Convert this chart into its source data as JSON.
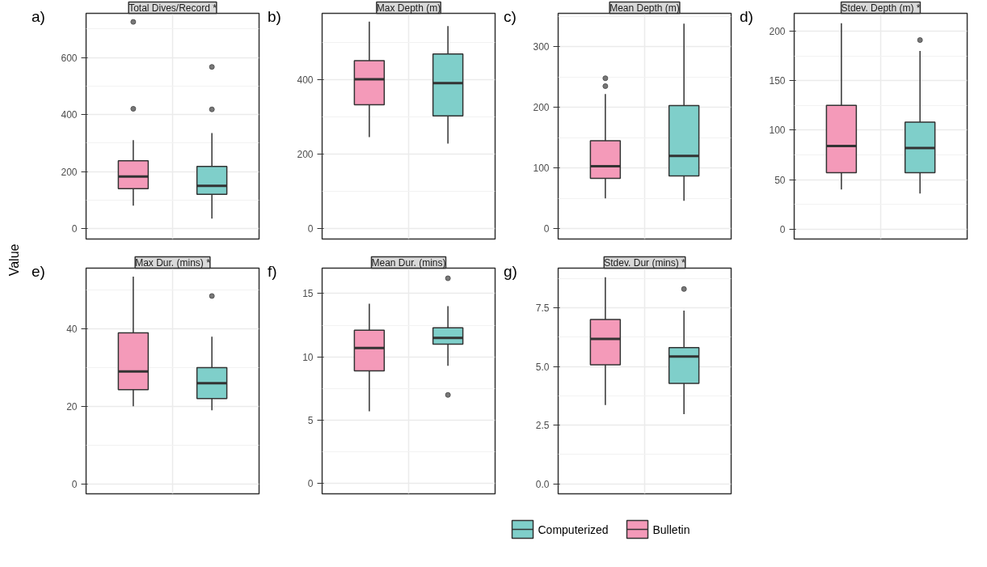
{
  "chart_data": [
    {
      "type": "box",
      "title": "Total Dives/Record *",
      "annotations": [
        "a)"
      ],
      "ylabel": "Value",
      "categories": [
        null,
        null
      ],
      "ylim": [
        -37,
        755
      ],
      "yticks": [
        0,
        200,
        400,
        600
      ],
      "grid": true,
      "tick_labels": "y",
      "series": [
        {
          "color": "#f49ab9",
          "boxes": [
            {
              "low": 80,
              "q1": 140,
              "median": 182,
              "q3": 238,
              "high": 310,
              "outliers": [
                420,
                725
              ]
            },
            null
          ]
        },
        {
          "color": "#7fcfca",
          "boxes": [
            null,
            {
              "low": 35,
              "q1": 120,
              "median": 150,
              "q3": 218,
              "high": 335,
              "outliers": [
                418,
                567
              ]
            }
          ]
        }
      ]
    },
    {
      "type": "box",
      "title": "Max Depth (m)",
      "annotations": [
        "b)"
      ],
      "categories": [
        null,
        null
      ],
      "ylim": [
        -28,
        577
      ],
      "yticks": [
        0,
        200,
        400
      ],
      "grid": true,
      "tick_labels": "y",
      "series": [
        {
          "color": "#f49ab9",
          "boxes": [
            {
              "low": 245,
              "q1": 332,
              "median": 400,
              "q3": 450,
              "high": 555
            },
            null
          ]
        },
        {
          "color": "#7fcfca",
          "boxes": [
            null,
            {
              "low": 228,
              "q1": 302,
              "median": 390,
              "q3": 468,
              "high": 543
            }
          ]
        }
      ]
    },
    {
      "type": "box",
      "title": "Mean Depth (m)",
      "annotations": [
        "c)"
      ],
      "categories": [
        null,
        null
      ],
      "ylim": [
        -17,
        355
      ],
      "yticks": [
        0,
        100,
        200,
        300
      ],
      "grid": true,
      "tick_labels": "y",
      "series": [
        {
          "color": "#f49ab9",
          "boxes": [
            {
              "low": 50,
              "q1": 83,
              "median": 103,
              "q3": 145,
              "high": 222,
              "outliers": [
                235,
                248
              ]
            },
            null
          ]
        },
        {
          "color": "#7fcfca",
          "boxes": [
            null,
            {
              "low": 46,
              "q1": 87,
              "median": 120,
              "q3": 203,
              "high": 338
            }
          ]
        }
      ]
    },
    {
      "type": "box",
      "title": "Stdev. Depth (m) *",
      "annotations": [
        "d)"
      ],
      "categories": [
        null,
        null
      ],
      "ylim": [
        -10,
        218
      ],
      "yticks": [
        0,
        50,
        100,
        150,
        200
      ],
      "grid": true,
      "tick_labels": "y",
      "series": [
        {
          "color": "#f49ab9",
          "boxes": [
            {
              "low": 40,
              "q1": 57,
              "median": 84,
              "q3": 125,
              "high": 208
            },
            null
          ]
        },
        {
          "color": "#7fcfca",
          "boxes": [
            null,
            {
              "low": 36,
              "q1": 57,
              "median": 82,
              "q3": 108,
              "high": 180,
              "outliers": [
                191
              ]
            }
          ]
        }
      ]
    },
    {
      "type": "box",
      "title": "Max Dur. (mins) *",
      "annotations": [
        "e)"
      ],
      "categories": [
        null,
        null
      ],
      "ylim": [
        -2.6,
        55.7
      ],
      "yticks": [
        0,
        20,
        40
      ],
      "grid": true,
      "tick_labels": "y",
      "series": [
        {
          "color": "#f49ab9",
          "boxes": [
            {
              "low": 20,
              "q1": 24.3,
              "median": 29,
              "q3": 39,
              "high": 53.5
            },
            null
          ]
        },
        {
          "color": "#7fcfca",
          "boxes": [
            null,
            {
              "low": 19,
              "q1": 22,
              "median": 26,
              "q3": 30,
              "high": 38,
              "outliers": [
                48.5
              ]
            }
          ]
        }
      ]
    },
    {
      "type": "box",
      "title": "Mean Dur. (mins)",
      "annotations": [
        "f)"
      ],
      "categories": [
        null,
        null
      ],
      "ylim": [
        -0.8,
        17
      ],
      "yticks": [
        0,
        5,
        10,
        15
      ],
      "grid": true,
      "tick_labels": "y",
      "series": [
        {
          "color": "#f49ab9",
          "boxes": [
            {
              "low": 5.7,
              "q1": 8.9,
              "median": 10.7,
              "q3": 12.1,
              "high": 14.2
            },
            null
          ]
        },
        {
          "color": "#7fcfca",
          "boxes": [
            null,
            {
              "low": 9.3,
              "q1": 11.0,
              "median": 11.5,
              "q3": 12.3,
              "high": 14.0,
              "outliers": [
                7.0,
                16.2
              ]
            }
          ]
        }
      ]
    },
    {
      "type": "box",
      "title": "Stdev. Dur (mins) *",
      "annotations": [
        "g)"
      ],
      "categories": [
        null,
        null
      ],
      "ylim": [
        -0.43,
        9.19
      ],
      "yticks": [
        {
          "value": 0,
          "label": "0.0"
        },
        2.5,
        {
          "value": 5,
          "label": "5.0"
        },
        7.5
      ],
      "grid": true,
      "tick_labels": "y",
      "legend": "bottom",
      "series": [
        {
          "name": "Bulletin",
          "color": "#f49ab9",
          "boxes": [
            {
              "low": 3.35,
              "q1": 5.07,
              "median": 6.17,
              "q3": 7.0,
              "high": 8.8
            },
            null
          ]
        },
        {
          "name": "Computerized",
          "color": "#7fcfca",
          "boxes": [
            null,
            {
              "low": 2.97,
              "q1": 4.28,
              "median": 5.42,
              "q3": 5.8,
              "high": 7.38,
              "outliers": [
                8.3
              ]
            }
          ]
        }
      ]
    }
  ]
}
